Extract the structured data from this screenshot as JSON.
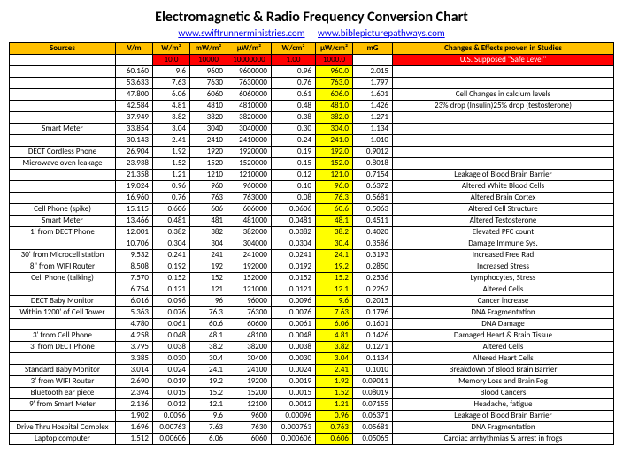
{
  "title": "Electromagnetic & Radio Frequency Conversion Chart",
  "links": [
    "www.swiftrunnerministries.com",
    "www.biblepicturepathways.com"
  ],
  "header": [
    "Sources",
    "V/m",
    "W/m²",
    "mW/m²",
    "μW/m²",
    "W/cm²",
    "μW/cm²",
    "mG",
    "Changes & Effects proven in Studies"
  ],
  "redRow": {
    "w": "10.0",
    "mw": "10000",
    "uw": "10000000",
    "wcm": "1.00",
    "uwcm": "1000.0",
    "changes": "U.S. Supposed \"Safe Level\""
  },
  "rows": [
    {
      "src": "",
      "vm": "60.160",
      "w": "9.6",
      "mw": "9600",
      "uw": "9600000",
      "wcm": "0.96",
      "uwy": "960.0",
      "mg": "2.015",
      "ch": ""
    },
    {
      "src": "",
      "vm": "53.633",
      "w": "7.63",
      "mw": "7630",
      "uw": "7630000",
      "wcm": "0.76",
      "uwy": "763.0",
      "mg": "1.797",
      "ch": ""
    },
    {
      "src": "",
      "vm": "47.800",
      "w": "6.06",
      "mw": "6060",
      "uw": "6060000",
      "wcm": "0.61",
      "uwy": "606.0",
      "mg": "1.601",
      "ch": "Cell Changes in calcium levels"
    },
    {
      "src": "",
      "vm": "42.584",
      "w": "4.81",
      "mw": "4810",
      "uw": "4810000",
      "wcm": "0.48",
      "uwy": "481.0",
      "mg": "1.426",
      "ch": "23% drop (Insulin)25% drop (testosterone)"
    },
    {
      "src": "",
      "vm": "37.949",
      "w": "3.82",
      "mw": "3820",
      "uw": "3820000",
      "wcm": "0.38",
      "uwy": "382.0",
      "mg": "1.271",
      "ch": ""
    },
    {
      "src": "Smart Meter",
      "vm": "33.854",
      "w": "3.04",
      "mw": "3040",
      "uw": "3040000",
      "wcm": "0.30",
      "uwy": "304.0",
      "mg": "1.134",
      "ch": ""
    },
    {
      "src": "",
      "vm": "30.143",
      "w": "2.41",
      "mw": "2410",
      "uw": "2410000",
      "wcm": "0.24",
      "uwy": "241.0",
      "mg": "1.010",
      "ch": ""
    },
    {
      "src": "DECT Cordless Phone",
      "vm": "26.904",
      "w": "1.92",
      "mw": "1920",
      "uw": "1920000",
      "wcm": "0.19",
      "uwy": "192.0",
      "mg": "0.9012",
      "ch": ""
    },
    {
      "src": "Microwave oven leakage",
      "vm": "23.938",
      "w": "1.52",
      "mw": "1520",
      "uw": "1520000",
      "wcm": "0.15",
      "uwy": "152.0",
      "mg": "0.8018",
      "ch": ""
    },
    {
      "src": "",
      "vm": "21.358",
      "w": "1.21",
      "mw": "1210",
      "uw": "1210000",
      "wcm": "0.12",
      "uwy": "121.0",
      "mg": "0.7154",
      "ch": "Leakage of Blood Brain Barrier"
    },
    {
      "src": "",
      "vm": "19.024",
      "w": "0.96",
      "mw": "960",
      "uw": "960000",
      "wcm": "0.10",
      "uwy": "96.0",
      "mg": "0.6372",
      "ch": "Altered White Blood Cells"
    },
    {
      "src": "",
      "vm": "16.960",
      "w": "0.76",
      "mw": "763",
      "uw": "763000",
      "wcm": "0.08",
      "uwy": "76.3",
      "mg": "0.5681",
      "ch": "Altered Brain Cortex"
    },
    {
      "src": "Cell Phone (spike)",
      "vm": "15.115",
      "w": "0.606",
      "mw": "606",
      "uw": "606000",
      "wcm": "0.0606",
      "uwy": "60.6",
      "mg": "0.5063",
      "ch": "Altered Cell Structure"
    },
    {
      "src": "Smart Meter",
      "vm": "13.466",
      "w": "0.481",
      "mw": "481",
      "uw": "481000",
      "wcm": "0.0481",
      "uwy": "48.1",
      "mg": "0.4511",
      "ch": "Altered Testosterone"
    },
    {
      "src": "1' from DECT Phone",
      "vm": "12.001",
      "w": "0.382",
      "mw": "382",
      "uw": "382000",
      "wcm": "0.0382",
      "uwy": "38.2",
      "mg": "0.4020",
      "ch": "Elevated PFC count"
    },
    {
      "src": "",
      "vm": "10.706",
      "w": "0.304",
      "mw": "304",
      "uw": "304000",
      "wcm": "0.0304",
      "uwy": "30.4",
      "mg": "0.3586",
      "ch": "Damage Immune Sys."
    },
    {
      "src": "30' from Microcell station",
      "vm": "9.532",
      "w": "0.241",
      "mw": "241",
      "uw": "241000",
      "wcm": "0.0241",
      "uwy": "24.1",
      "mg": "0.3193",
      "ch": "Increased Free Rad"
    },
    {
      "src": "8\" from WIFI Router",
      "vm": "8.508",
      "w": "0.192",
      "mw": "192",
      "uw": "192000",
      "wcm": "0.0192",
      "uwy": "19.2",
      "mg": "0.2850",
      "ch": "Increased Stress"
    },
    {
      "src": "Cell Phone (talking)",
      "vm": "7.570",
      "w": "0.152",
      "mw": "152",
      "uw": "152000",
      "wcm": "0.0152",
      "uwy": "15.2",
      "mg": "0.2536",
      "ch": "Lymphocytes, Stress"
    },
    {
      "src": "",
      "vm": "6.754",
      "w": "0.121",
      "mw": "121",
      "uw": "121000",
      "wcm": "0.0121",
      "uwy": "12.1",
      "mg": "0.2262",
      "ch": "Altered Cells"
    },
    {
      "src": "DECT Baby Monitor",
      "vm": "6.016",
      "w": "0.096",
      "mw": "96",
      "uw": "96000",
      "wcm": "0.0096",
      "uwy": "9.6",
      "mg": "0.2015",
      "ch": "Cancer increase"
    },
    {
      "src": "Within 1200' of Cell Tower",
      "vm": "5.363",
      "w": "0.076",
      "mw": "76.3",
      "uw": "76300",
      "wcm": "0.0076",
      "uwy": "7.63",
      "mg": "0.1796",
      "ch": "DNA Fragmentation"
    },
    {
      "src": "",
      "vm": "4.780",
      "w": "0.061",
      "mw": "60.6",
      "uw": "60600",
      "wcm": "0.0061",
      "uwy": "6.06",
      "mg": "0.1601",
      "ch": "DNA Damage"
    },
    {
      "src": "3' from Cell Phone",
      "vm": "4.258",
      "w": "0.048",
      "mw": "48.1",
      "uw": "48100",
      "wcm": "0.0048",
      "uwy": "4.81",
      "mg": "0.1426",
      "ch": "Damaged Heart & Brain Tissue"
    },
    {
      "src": "3' from DECT Phone",
      "vm": "3.795",
      "w": "0.038",
      "mw": "38.2",
      "uw": "38200",
      "wcm": "0.0038",
      "uwy": "3.82",
      "mg": "0.1271",
      "ch": "Altered Cells"
    },
    {
      "src": "",
      "vm": "3.385",
      "w": "0.030",
      "mw": "30.4",
      "uw": "30400",
      "wcm": "0.0030",
      "uwy": "3.04",
      "mg": "0.1134",
      "ch": "Altered Heart Cells"
    },
    {
      "src": "Standard Baby Monitor",
      "vm": "3.014",
      "w": "0.024",
      "mw": "24.1",
      "uw": "24100",
      "wcm": "0.0024",
      "uwy": "2.41",
      "mg": "0.1010",
      "ch": "Breakdown of Blood Brain Barrier"
    },
    {
      "src": "3' from WIFI Router",
      "vm": "2.690",
      "w": "0.019",
      "mw": "19.2",
      "uw": "19200",
      "wcm": "0.0019",
      "uwy": "1.92",
      "mg": "0.09011",
      "ch": "Memory Loss and Brain Fog"
    },
    {
      "src": "Bluetooth ear piece",
      "vm": "2.394",
      "w": "0.015",
      "mw": "15.2",
      "uw": "15200",
      "wcm": "0.0015",
      "uwy": "1.52",
      "mg": "0.08019",
      "ch": "Blood Cancers"
    },
    {
      "src": "9' from Smart Meter",
      "vm": "2.136",
      "w": "0.012",
      "mw": "12.1",
      "uw": "12100",
      "wcm": "0.0012",
      "uwy": "1.21",
      "mg": "0.07155",
      "ch": "Headache, fatigue"
    },
    {
      "src": "",
      "vm": "1.902",
      "w": "0.0096",
      "mw": "9.6",
      "uw": "9600",
      "wcm": "0.00096",
      "uwy": "0.96",
      "mg": "0.06371",
      "ch": "Leakage of Blood Brain Barrier"
    },
    {
      "src": "Drive Thru Hospital Complex",
      "vm": "1.696",
      "w": "0.00763",
      "mw": "7.63",
      "uw": "7630",
      "wcm": "0.000763",
      "uwy": "0.763",
      "mg": "0.05681",
      "ch": "DNA Fragmentation"
    },
    {
      "src": "Laptop computer",
      "vm": "1.512",
      "w": "0.00606",
      "mw": "6.06",
      "uw": "6060",
      "wcm": "0.000606",
      "uwy": "0.606",
      "mg": "0.05065",
      "ch": "Cardiac arrhythmias & arrest in frogs"
    }
  ]
}
